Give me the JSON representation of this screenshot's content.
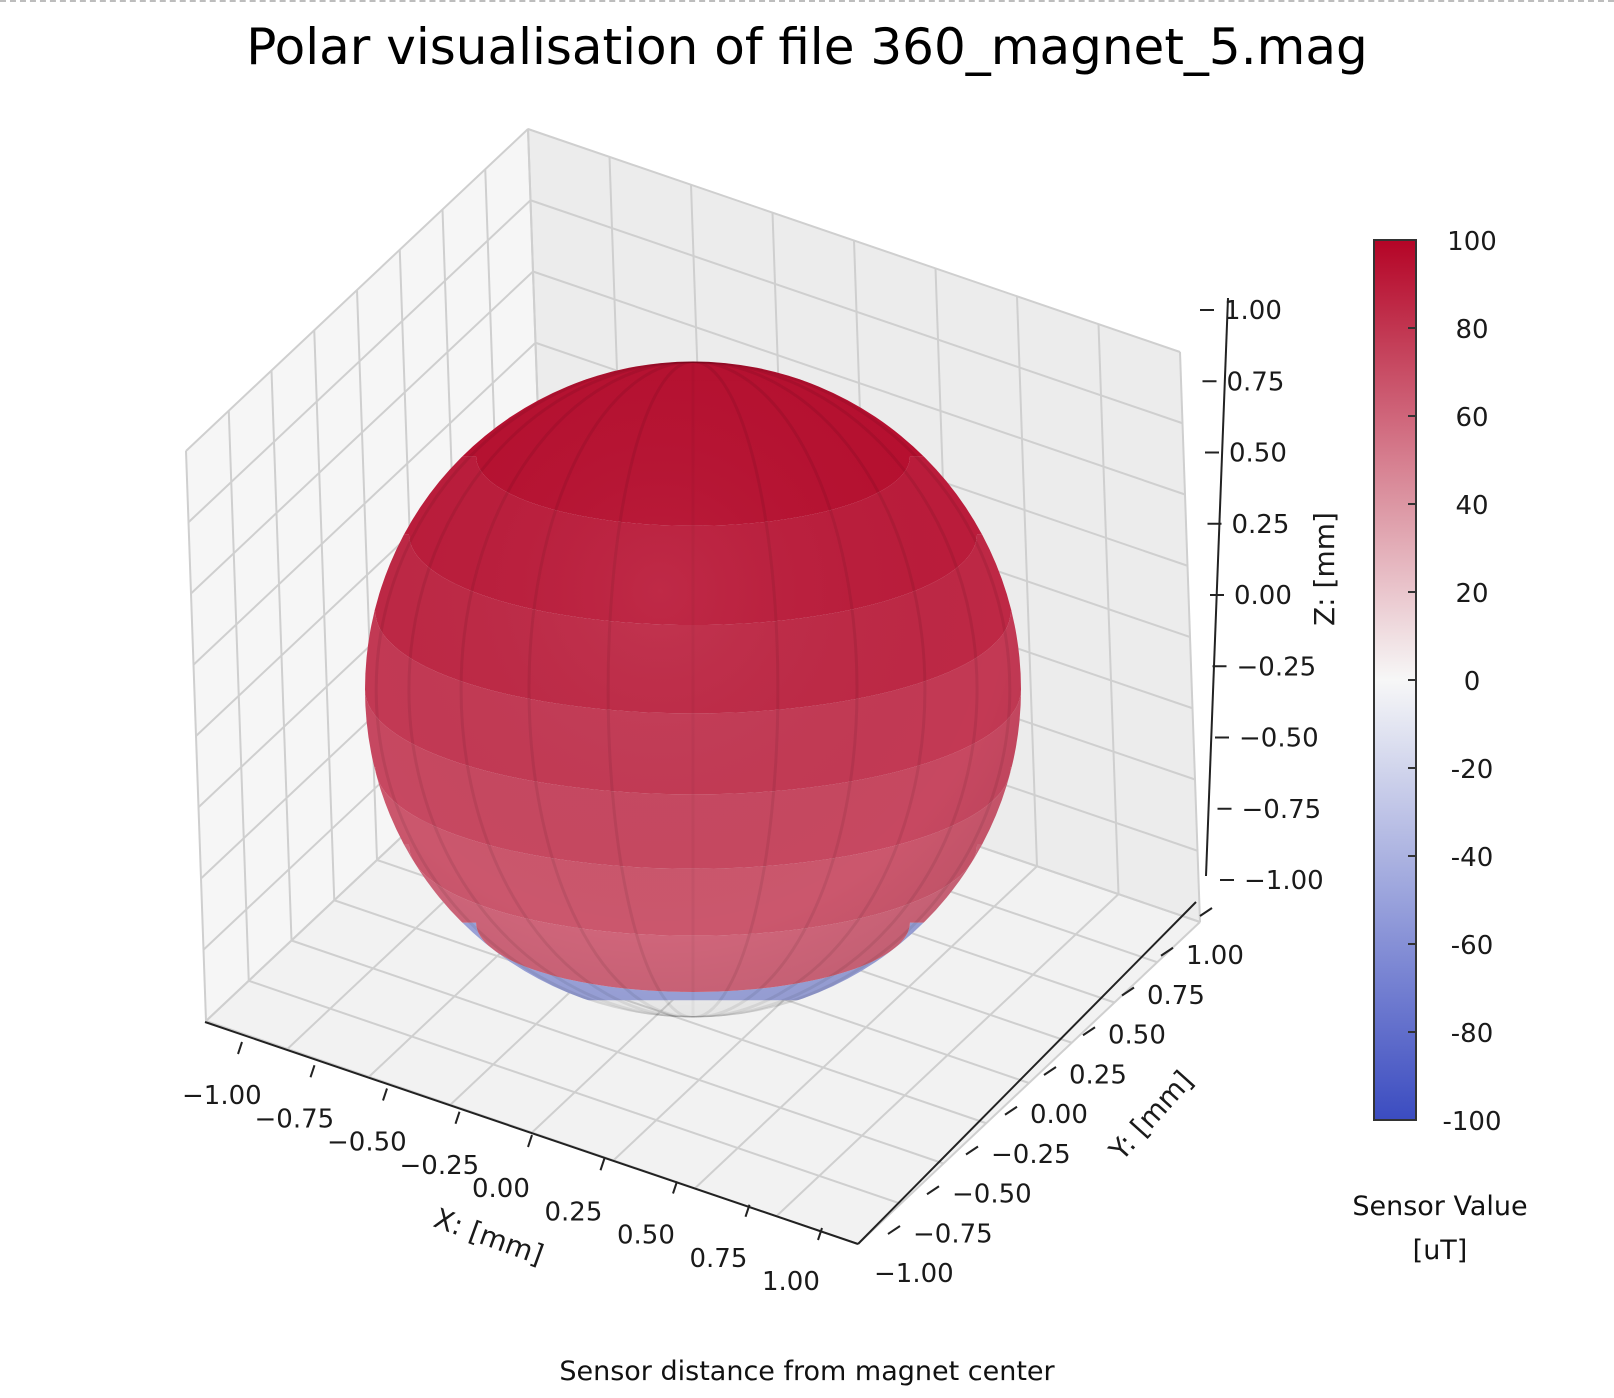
{
  "title": "Polar visualisation of file 360_magnet_5.mag",
  "footer": "Sensor distance from magnet center",
  "chart_data": {
    "type": "surface3d",
    "title": "Polar visualisation of file 360_magnet_5.mag",
    "xlabel": "X: [mm]",
    "ylabel": "Y: [mm]",
    "zlabel": "Z: [mm]",
    "xlim": [
      -1.0,
      1.0
    ],
    "ylim": [
      -1.0,
      1.0
    ],
    "zlim": [
      -1.0,
      1.0
    ],
    "x_ticks": [
      "−1.00",
      "−0.75",
      "−0.50",
      "−0.25",
      "0.00",
      "0.25",
      "0.50",
      "0.75",
      "1.00"
    ],
    "y_ticks": [
      "−1.00",
      "−0.75",
      "−0.50",
      "−0.25",
      "0.00",
      "0.25",
      "0.50",
      "0.75",
      "1.00"
    ],
    "z_ticks": [
      "−1.00",
      "−0.75",
      "−0.50",
      "−0.25",
      "0.00",
      "0.25",
      "0.50",
      "0.75",
      "1.00"
    ],
    "grid": true,
    "surface": {
      "shape": "unit sphere",
      "radius": 1.0,
      "center": [
        0,
        0,
        0
      ],
      "band_values": [
        {
          "z_range": [
            0.75,
            1.0
          ],
          "value": 95
        },
        {
          "z_range": [
            0.5,
            0.75
          ],
          "value": 90
        },
        {
          "z_range": [
            0.25,
            0.5
          ],
          "value": 85
        },
        {
          "z_range": [
            0.0,
            0.25
          ],
          "value": 78
        },
        {
          "z_range": [
            -0.25,
            0.0
          ],
          "value": 72
        },
        {
          "z_range": [
            -0.5,
            -0.25
          ],
          "value": 66
        },
        {
          "z_range": [
            -0.75,
            -0.5
          ],
          "value": 60
        },
        {
          "z_range": [
            -1.0,
            -0.75
          ],
          "value": -48
        }
      ]
    },
    "colorbar": {
      "colormap": "coolwarm",
      "range": [
        -100,
        100
      ],
      "ticks": [
        "100",
        "80",
        "60",
        "40",
        "20",
        "0",
        "-20",
        "-40",
        "-60",
        "-80",
        "-100"
      ],
      "label_line1": "Sensor Value",
      "label_line2": "[uT]",
      "colors": [
        "#3b4cc0",
        "#f7f7f7",
        "#b40426"
      ]
    }
  }
}
